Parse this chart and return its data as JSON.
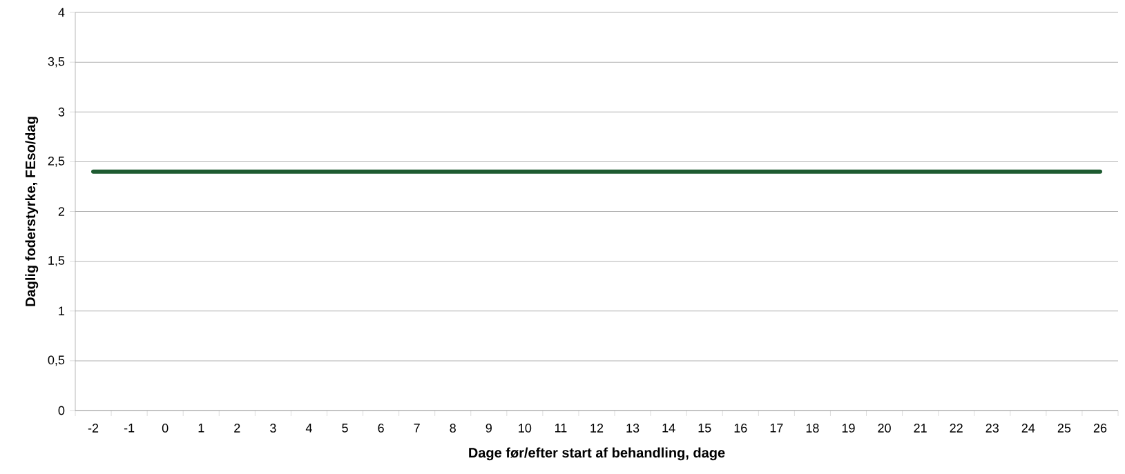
{
  "chart_data": {
    "type": "line",
    "xlabel": "Dage før/efter start af behandling, dage",
    "ylabel": "Daglig foderstyrke, FEso/dag",
    "categories": [
      "-2",
      "-1",
      "0",
      "1",
      "2",
      "3",
      "4",
      "5",
      "6",
      "7",
      "8",
      "9",
      "10",
      "11",
      "12",
      "13",
      "14",
      "15",
      "16",
      "17",
      "18",
      "19",
      "20",
      "21",
      "22",
      "23",
      "24",
      "25",
      "26"
    ],
    "series": [
      {
        "color": "#1e5b31",
        "values": [
          2.4,
          2.4,
          2.4,
          2.4,
          2.4,
          2.4,
          2.4,
          2.4,
          2.4,
          2.4,
          2.4,
          2.4,
          2.4,
          2.4,
          2.4,
          2.4,
          2.4,
          2.4,
          2.4,
          2.4,
          2.4,
          2.4,
          2.4,
          2.4,
          2.4,
          2.4,
          2.4,
          2.4,
          2.4
        ]
      }
    ],
    "ylim": [
      0,
      4
    ],
    "yticks": [
      0,
      {
        "value": 0.5,
        "label": "0,5"
      },
      1,
      {
        "value": 1.5,
        "label": "1,5"
      },
      2,
      {
        "value": 2.5,
        "label": "2,5"
      },
      3,
      {
        "value": 3.5,
        "label": "3,5"
      },
      4
    ],
    "grid": "y",
    "marker": "none",
    "line_style": "solid"
  }
}
